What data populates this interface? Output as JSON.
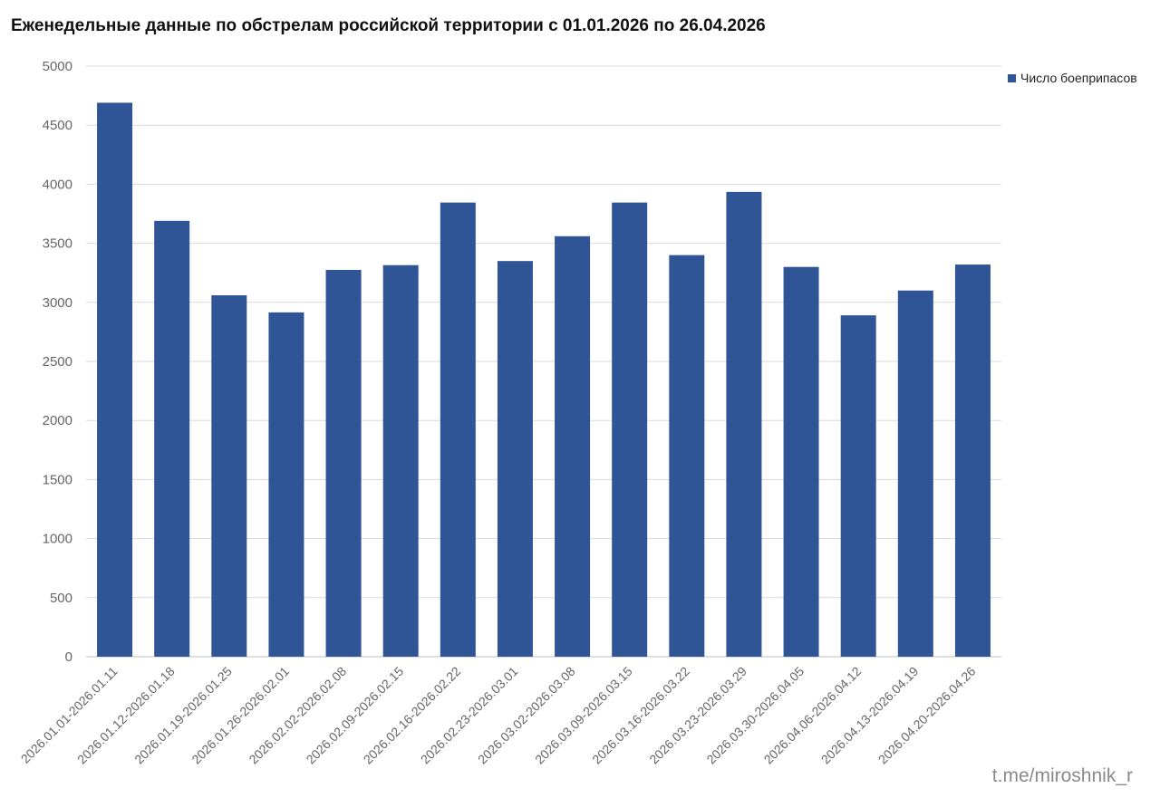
{
  "chart_data": {
    "type": "bar",
    "title": "Еженедельные данные по обстрелам российской территории с 01.01.2026 по 26.04.2026",
    "xlabel": "",
    "ylabel": "",
    "ylim": [
      0,
      5000
    ],
    "yticks": [
      0,
      500,
      1000,
      1500,
      2000,
      2500,
      3000,
      3500,
      4000,
      4500,
      5000
    ],
    "grid": true,
    "legend_position": "right",
    "categories": [
      "2026.01.01-2026.01.11",
      "2026.01.12-2026.01.18",
      "2026.01.19-2026.01.25",
      "2026.01.26-2026.02.01",
      "2026.02.02-2026.02.08",
      "2026.02.09-2026.02.15",
      "2026.02.16-2026.02.22",
      "2026.02.23-2026.03.01",
      "2026.03.02-2026.03.08",
      "2026.03.09-2026.03.15",
      "2026.03.16-2026.03.22",
      "2026.03.23-2026.03.29",
      "2026.03.30-2026.04.05",
      "2026.04.06-2026.04.12",
      "2026.04.13-2026.04.19",
      "2026.04.20-2026.04.26"
    ],
    "series": [
      {
        "name": "Число боеприпасов",
        "color": "#2f5597",
        "values": [
          4690,
          3690,
          3060,
          2915,
          3275,
          3315,
          3845,
          3350,
          3560,
          3845,
          3400,
          3935,
          3300,
          2890,
          3100,
          3320
        ]
      }
    ]
  },
  "watermark": "t.me/miroshnik_r"
}
